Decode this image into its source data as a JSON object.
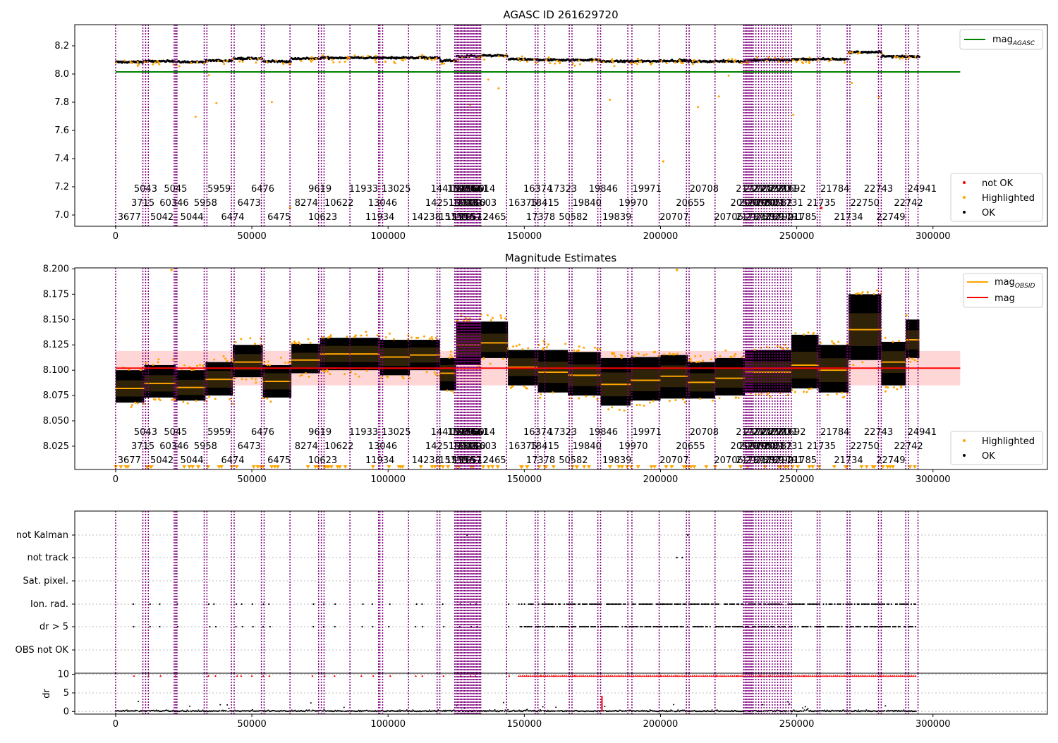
{
  "figure": {
    "background": "#ffffff"
  },
  "colors": {
    "ok": "#000000",
    "highlighted": "#ffa500",
    "not_ok": "#ff0000",
    "mag_agasc": "#008000",
    "mag_line": "#ff0000",
    "mag_band": "#ffd6d6",
    "mag_obsid": "#ffa500",
    "obsid_divider": "#800080",
    "grid": "#bbbbbb"
  },
  "chart_data": [
    {
      "type": "scatter",
      "title": "AGASC ID 261629720",
      "xlabel": "",
      "ylabel": "",
      "xlim": [
        -15000,
        342000
      ],
      "ylim": [
        6.92,
        8.35
      ],
      "xticks": [
        0,
        50000,
        100000,
        150000,
        200000,
        250000,
        300000
      ],
      "xtick_labels": [
        "0",
        "50000",
        "100000",
        "150000",
        "200000",
        "250000",
        "300000"
      ],
      "yticks": [
        7.0,
        7.2,
        7.4,
        7.6,
        7.8,
        8.0,
        8.2
      ],
      "ytick_labels": [
        "7.0",
        "7.2",
        "7.4",
        "7.6",
        "7.8",
        "8.0",
        "8.2"
      ],
      "reference_lines": [
        {
          "name": "mag_AGASC",
          "y": 8.015,
          "x_range": [
            0,
            310000
          ]
        }
      ],
      "legends": [
        {
          "placement": "upper-right",
          "entries": [
            {
              "label": "mag",
              "sub": "AGASC",
              "kind": "line",
              "color": "#008000"
            }
          ]
        },
        {
          "placement": "lower-right",
          "entries": [
            {
              "label": "not OK",
              "kind": "dot",
              "color": "#ff0000"
            },
            {
              "label": "Highlighted",
              "kind": "dot",
              "color": "#ffa500"
            },
            {
              "label": "OK",
              "kind": "dot",
              "color": "#000000"
            }
          ]
        }
      ],
      "segments": [
        {
          "x0": 0,
          "x1": 10500,
          "mag": 8.085
        },
        {
          "x0": 10500,
          "x1": 22000,
          "mag": 8.09
        },
        {
          "x0": 22000,
          "x1": 33000,
          "mag": 8.085
        },
        {
          "x0": 33000,
          "x1": 43000,
          "mag": 8.095
        },
        {
          "x0": 43000,
          "x1": 54000,
          "mag": 8.11
        },
        {
          "x0": 54000,
          "x1": 64500,
          "mag": 8.09
        },
        {
          "x0": 64500,
          "x1": 75000,
          "mag": 8.11
        },
        {
          "x0": 75000,
          "x1": 97000,
          "mag": 8.115
        },
        {
          "x0": 97000,
          "x1": 108000,
          "mag": 8.115
        },
        {
          "x0": 108000,
          "x1": 119000,
          "mag": 8.115
        },
        {
          "x0": 119000,
          "x1": 125000,
          "mag": 8.095
        },
        {
          "x0": 125000,
          "x1": 134000,
          "mag": 8.125
        },
        {
          "x0": 134000,
          "x1": 144000,
          "mag": 8.13
        },
        {
          "x0": 144000,
          "x1": 155000,
          "mag": 8.105
        },
        {
          "x0": 155000,
          "x1": 178000,
          "mag": 8.1
        },
        {
          "x0": 178000,
          "x1": 200000,
          "mag": 8.09
        },
        {
          "x0": 200000,
          "x1": 210000,
          "mag": 8.095
        },
        {
          "x0": 210000,
          "x1": 231000,
          "mag": 8.09
        },
        {
          "x0": 231000,
          "x1": 248000,
          "mag": 8.1
        },
        {
          "x0": 248000,
          "x1": 269000,
          "mag": 8.105
        },
        {
          "x0": 269000,
          "x1": 281000,
          "mag": 8.155
        },
        {
          "x0": 281000,
          "x1": 295000,
          "mag": 8.125
        }
      ]
    },
    {
      "type": "scatter",
      "title": "Magnitude Estimates",
      "xlabel": "",
      "ylabel": "",
      "xlim": [
        -15000,
        342000
      ],
      "ylim": [
        8.002,
        8.201
      ],
      "xticks": [
        0,
        50000,
        100000,
        150000,
        200000,
        250000,
        300000
      ],
      "xtick_labels": [
        "0",
        "50000",
        "100000",
        "150000",
        "200000",
        "250000",
        "300000"
      ],
      "yticks": [
        8.025,
        8.05,
        8.075,
        8.1,
        8.125,
        8.15,
        8.175,
        8.2
      ],
      "ytick_labels": [
        "8.025",
        "8.050",
        "8.075",
        "8.100",
        "8.125",
        "8.150",
        "8.175",
        "8.200"
      ],
      "mag": 8.102,
      "mag_band": [
        8.085,
        8.119
      ],
      "legends": [
        {
          "placement": "upper-right",
          "entries": [
            {
              "label": "mag",
              "sub": "OBSID",
              "kind": "line",
              "color": "#ffa500"
            },
            {
              "label": "mag",
              "kind": "line",
              "color": "#ff0000"
            }
          ]
        },
        {
          "placement": "lower-right",
          "entries": [
            {
              "label": "Highlighted",
              "kind": "dot",
              "color": "#ffa500"
            },
            {
              "label": "OK",
              "kind": "dot",
              "color": "#000000"
            }
          ]
        }
      ],
      "obsid_segments": [
        {
          "x0": 0,
          "x1": 10500,
          "mag": 8.082,
          "lo": 8.068,
          "hi": 8.1
        },
        {
          "x0": 10500,
          "x1": 22000,
          "mag": 8.087,
          "lo": 8.073,
          "hi": 8.105
        },
        {
          "x0": 22000,
          "x1": 33000,
          "mag": 8.083,
          "lo": 8.07,
          "hi": 8.1
        },
        {
          "x0": 33000,
          "x1": 43000,
          "mag": 8.091,
          "lo": 8.075,
          "hi": 8.108
        },
        {
          "x0": 43000,
          "x1": 54000,
          "mag": 8.108,
          "lo": 8.093,
          "hi": 8.125
        },
        {
          "x0": 54000,
          "x1": 64500,
          "mag": 8.089,
          "lo": 8.073,
          "hi": 8.105
        },
        {
          "x0": 64500,
          "x1": 75000,
          "mag": 8.11,
          "lo": 8.097,
          "hi": 8.126
        },
        {
          "x0": 75000,
          "x1": 97000,
          "mag": 8.116,
          "lo": 8.1,
          "hi": 8.132
        },
        {
          "x0": 97000,
          "x1": 108000,
          "mag": 8.113,
          "lo": 8.095,
          "hi": 8.13
        },
        {
          "x0": 108000,
          "x1": 119000,
          "mag": 8.115,
          "lo": 8.1,
          "hi": 8.13
        },
        {
          "x0": 119000,
          "x1": 125000,
          "mag": 8.097,
          "lo": 8.08,
          "hi": 8.112
        },
        {
          "x0": 125000,
          "x1": 134000,
          "mag": 8.125,
          "lo": 8.105,
          "hi": 8.148
        },
        {
          "x0": 134000,
          "x1": 144000,
          "mag": 8.127,
          "lo": 8.112,
          "hi": 8.148
        },
        {
          "x0": 144000,
          "x1": 155000,
          "mag": 8.103,
          "lo": 8.085,
          "hi": 8.12
        },
        {
          "x0": 155000,
          "x1": 166000,
          "mag": 8.098,
          "lo": 8.078,
          "hi": 8.12
        },
        {
          "x0": 166000,
          "x1": 178000,
          "mag": 8.095,
          "lo": 8.075,
          "hi": 8.118
        },
        {
          "x0": 178000,
          "x1": 189000,
          "mag": 8.086,
          "lo": 8.065,
          "hi": 8.112
        },
        {
          "x0": 189000,
          "x1": 200000,
          "mag": 8.09,
          "lo": 8.07,
          "hi": 8.113
        },
        {
          "x0": 200000,
          "x1": 210000,
          "mag": 8.094,
          "lo": 8.072,
          "hi": 8.115
        },
        {
          "x0": 210000,
          "x1": 220000,
          "mag": 8.088,
          "lo": 8.072,
          "hi": 8.108
        },
        {
          "x0": 220000,
          "x1": 231000,
          "mag": 8.092,
          "lo": 8.075,
          "hi": 8.112
        },
        {
          "x0": 231000,
          "x1": 248000,
          "mag": 8.098,
          "lo": 8.078,
          "hi": 8.12
        },
        {
          "x0": 248000,
          "x1": 258000,
          "mag": 8.105,
          "lo": 8.082,
          "hi": 8.135
        },
        {
          "x0": 258000,
          "x1": 269000,
          "mag": 8.1,
          "lo": 8.078,
          "hi": 8.125
        },
        {
          "x0": 269000,
          "x1": 281000,
          "mag": 8.14,
          "lo": 8.11,
          "hi": 8.175
        },
        {
          "x0": 281000,
          "x1": 290000,
          "mag": 8.108,
          "lo": 8.085,
          "hi": 8.128
        },
        {
          "x0": 290000,
          "x1": 295000,
          "mag": 8.13,
          "lo": 8.112,
          "hi": 8.15
        }
      ]
    },
    {
      "type": "scatter",
      "title": "",
      "xlabel": "",
      "ylabel": "dr",
      "xlim": [
        -15000,
        342000
      ],
      "xticks": [
        0,
        50000,
        100000,
        150000,
        200000,
        250000,
        300000
      ],
      "xtick_labels": [
        "0",
        "50000",
        "100000",
        "150000",
        "200000",
        "250000",
        "300000"
      ],
      "flag_rows": [
        "not Kalman",
        "not track",
        "Sat. pixel.",
        "Ion. rad.",
        "dr > 5",
        "OBS not OK"
      ],
      "dr_ylim": [
        0,
        10
      ],
      "dr_yticks": [
        0,
        5,
        10
      ],
      "dr_ytick_labels": [
        "0",
        "5",
        "10"
      ],
      "dr_spike": {
        "x": 178500,
        "y": 4.2
      }
    }
  ],
  "obsid_dividers": [
    0,
    10000,
    11000,
    12000,
    21500,
    22000,
    22500,
    32500,
    33500,
    42500,
    43500,
    53500,
    54500,
    64000,
    74500,
    75500,
    76500,
    86000,
    96500,
    97000,
    98000,
    107500,
    118000,
    119000,
    124500,
    125000,
    125500,
    126000,
    126500,
    127000,
    127500,
    128000,
    128500,
    129000,
    129500,
    130000,
    130500,
    131000,
    131500,
    132000,
    132500,
    133000,
    133500,
    134000,
    143500,
    154000,
    155000,
    157500,
    166500,
    167500,
    177000,
    178000,
    188000,
    189500,
    199500,
    209500,
    210500,
    220000,
    230500,
    231000,
    231500,
    232000,
    232500,
    233000,
    233500,
    234000,
    235000,
    236000,
    237000,
    238000,
    239000,
    240000,
    241000,
    242000,
    243000,
    244000,
    245000,
    246000,
    247000,
    248000,
    257500,
    258500,
    268500,
    269500,
    280000,
    281000,
    290000,
    291000,
    294500
  ],
  "obsid_labels": [
    {
      "text": "5043",
      "x": 11000,
      "row": 0
    },
    {
      "text": "5045",
      "x": 22000,
      "row": 0
    },
    {
      "text": "5959",
      "x": 38000,
      "row": 0
    },
    {
      "text": "6476",
      "x": 54000,
      "row": 0
    },
    {
      "text": "9619",
      "x": 75000,
      "row": 0
    },
    {
      "text": "11933",
      "x": 91000,
      "row": 0
    },
    {
      "text": "13025",
      "x": 103000,
      "row": 0
    },
    {
      "text": "14415",
      "x": 121000,
      "row": 0
    },
    {
      "text": "15066",
      "x": 127000,
      "row": 0
    },
    {
      "text": "15073",
      "x": 128500,
      "row": 0
    },
    {
      "text": "15560",
      "x": 130000,
      "row": 0
    },
    {
      "text": "15661",
      "x": 131500,
      "row": 0
    },
    {
      "text": "16614",
      "x": 134000,
      "row": 0
    },
    {
      "text": "16374",
      "x": 155000,
      "row": 0
    },
    {
      "text": "17323",
      "x": 164000,
      "row": 0
    },
    {
      "text": "19846",
      "x": 179000,
      "row": 0
    },
    {
      "text": "19971",
      "x": 195000,
      "row": 0
    },
    {
      "text": "20708",
      "x": 216000,
      "row": 0
    },
    {
      "text": "21727",
      "x": 233000,
      "row": 0
    },
    {
      "text": "21728",
      "x": 236000,
      "row": 0
    },
    {
      "text": "21729",
      "x": 239000,
      "row": 0
    },
    {
      "text": "21730",
      "x": 242000,
      "row": 0
    },
    {
      "text": "21731",
      "x": 245000,
      "row": 0
    },
    {
      "text": "21692",
      "x": 248000,
      "row": 0
    },
    {
      "text": "21784",
      "x": 264000,
      "row": 0
    },
    {
      "text": "22743",
      "x": 280000,
      "row": 0
    },
    {
      "text": "24941",
      "x": 296000,
      "row": 0
    },
    {
      "text": "3715",
      "x": 10000,
      "row": 1
    },
    {
      "text": "60346",
      "x": 21500,
      "row": 1
    },
    {
      "text": "5958",
      "x": 33000,
      "row": 1
    },
    {
      "text": "6473",
      "x": 49000,
      "row": 1
    },
    {
      "text": "8274",
      "x": 70000,
      "row": 1
    },
    {
      "text": "10622",
      "x": 82000,
      "row": 1
    },
    {
      "text": "13046",
      "x": 98000,
      "row": 1
    },
    {
      "text": "14251",
      "x": 119000,
      "row": 1
    },
    {
      "text": "15008",
      "x": 127500,
      "row": 1
    },
    {
      "text": "15009",
      "x": 129000,
      "row": 1
    },
    {
      "text": "15010",
      "x": 130500,
      "row": 1
    },
    {
      "text": "16603",
      "x": 134500,
      "row": 1
    },
    {
      "text": "16375",
      "x": 149500,
      "row": 1
    },
    {
      "text": "18415",
      "x": 157500,
      "row": 1
    },
    {
      "text": "19840",
      "x": 173000,
      "row": 1
    },
    {
      "text": "19970",
      "x": 190000,
      "row": 1
    },
    {
      "text": "20655",
      "x": 211000,
      "row": 1
    },
    {
      "text": "20578",
      "x": 231000,
      "row": 1
    },
    {
      "text": "20579",
      "x": 234000,
      "row": 1
    },
    {
      "text": "20580",
      "x": 237000,
      "row": 1
    },
    {
      "text": "20581",
      "x": 240000,
      "row": 1
    },
    {
      "text": "20582",
      "x": 243000,
      "row": 1
    },
    {
      "text": "21731",
      "x": 247000,
      "row": 1
    },
    {
      "text": "21735",
      "x": 259000,
      "row": 1
    },
    {
      "text": "22750",
      "x": 275000,
      "row": 1
    },
    {
      "text": "22742",
      "x": 291000,
      "row": 1
    },
    {
      "text": "3677",
      "x": 5000,
      "row": 2
    },
    {
      "text": "5042",
      "x": 17000,
      "row": 2
    },
    {
      "text": "5044",
      "x": 28000,
      "row": 2
    },
    {
      "text": "6474",
      "x": 43000,
      "row": 2
    },
    {
      "text": "6475",
      "x": 60000,
      "row": 2
    },
    {
      "text": "10623",
      "x": 76000,
      "row": 2
    },
    {
      "text": "11934",
      "x": 97000,
      "row": 2
    },
    {
      "text": "14238",
      "x": 114000,
      "row": 2
    },
    {
      "text": "15155",
      "x": 124000,
      "row": 2
    },
    {
      "text": "15156",
      "x": 126500,
      "row": 2
    },
    {
      "text": "15157",
      "x": 129000,
      "row": 2
    },
    {
      "text": "16512",
      "x": 131500,
      "row": 2
    },
    {
      "text": "12465",
      "x": 138000,
      "row": 2
    },
    {
      "text": "17378",
      "x": 156000,
      "row": 2
    },
    {
      "text": "50582",
      "x": 168000,
      "row": 2
    },
    {
      "text": "19839",
      "x": 184000,
      "row": 2
    },
    {
      "text": "20707",
      "x": 205000,
      "row": 2
    },
    {
      "text": "20706",
      "x": 225000,
      "row": 2
    },
    {
      "text": "21787",
      "x": 233000,
      "row": 2
    },
    {
      "text": "21788",
      "x": 236500,
      "row": 2
    },
    {
      "text": "21789",
      "x": 240000,
      "row": 2
    },
    {
      "text": "21790",
      "x": 243500,
      "row": 2
    },
    {
      "text": "21791",
      "x": 247000,
      "row": 2
    },
    {
      "text": "21785",
      "x": 252000,
      "row": 2
    },
    {
      "text": "21734",
      "x": 269000,
      "row": 2
    },
    {
      "text": "22749",
      "x": 284500,
      "row": 2
    }
  ]
}
